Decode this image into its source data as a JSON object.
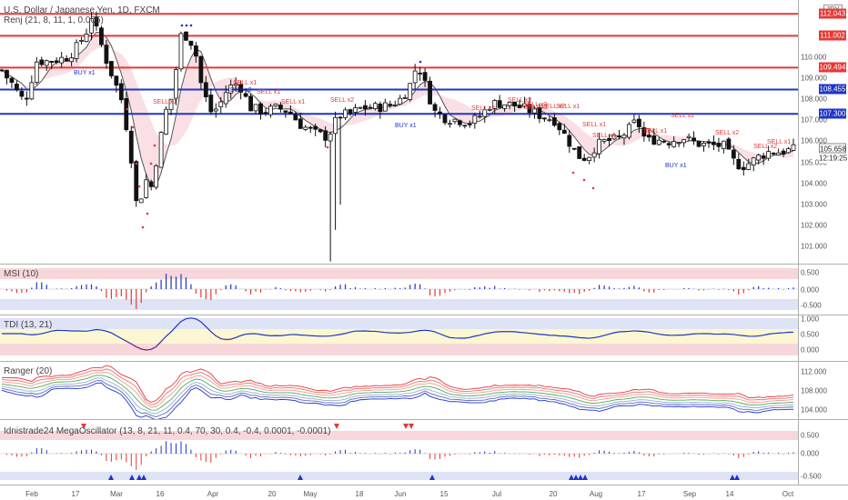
{
  "main": {
    "title": "U.S. Dollar / Japanese Yen, 1D, FXCM",
    "indicator": "Renj (21, 8, 11, 1, 0.005)",
    "currency": "JPY",
    "price_ticks": [
      "110.000",
      "109.000",
      "108.000",
      "107.000",
      "106.000",
      "105.000",
      "104.000",
      "103.000",
      "102.000",
      "101.000"
    ],
    "last_price": "105.658",
    "countdown": "12:19:25",
    "levels": [
      {
        "value": "112.043",
        "color": "#e53935"
      },
      {
        "value": "111.002",
        "color": "#e53935"
      },
      {
        "value": "109.494",
        "color": "#e53935"
      },
      {
        "value": "108.455",
        "color": "#1e35c9"
      },
      {
        "value": "107.300",
        "color": "#1e35c9"
      }
    ],
    "annotations": {
      "buy": [
        "BUY x1",
        "BUY x1",
        "BUY x1",
        "BUY x2"
      ],
      "sell": [
        "SELL x1",
        "SELL x1",
        "SELL x1",
        "SELL x1",
        "SELL x2",
        "SELL x2",
        "SELL x2",
        "SELL x2",
        "SELL x2",
        "SELL x1",
        "SELL x1",
        "SELL x1",
        "SELL x1",
        "SELL x2",
        "SELL x2",
        "SELL x2",
        "SELL x1",
        "SELL x2"
      ]
    }
  },
  "msi": {
    "title": "MSI (10)",
    "ticks": [
      "0.500",
      "0.000",
      "-0.500"
    ]
  },
  "tdi": {
    "title": "TDI (13, 21)",
    "ticks": [
      "1.000",
      "0.500",
      "0.000"
    ]
  },
  "ranger": {
    "title": "Ranger (20)",
    "ticks": [
      "112.000",
      "108.000",
      "104.000"
    ]
  },
  "mega": {
    "title": "Idnistrade24 MegaOscillator (13, 8, 21, 11, 0.4, 70, 30, 0.4, -0.4, 0.0001, -0.0001)",
    "ticks": [
      "0.500",
      "0.000",
      "-0.500"
    ]
  },
  "xaxis": [
    "Feb",
    "17",
    "Mar",
    "16",
    "Apr",
    "20",
    "May",
    "18",
    "Jun",
    "15",
    "Jul",
    "20",
    "Aug",
    "17",
    "Sep",
    "14",
    "Oct"
  ],
  "colors": {
    "up": "#ffffff",
    "down": "#111111",
    "sell": "#e53935",
    "buy": "#1e35c9",
    "band_red": "#f8d7da",
    "band_blue": "#dfe3f6",
    "band_yellow": "#fbf7d2"
  }
}
